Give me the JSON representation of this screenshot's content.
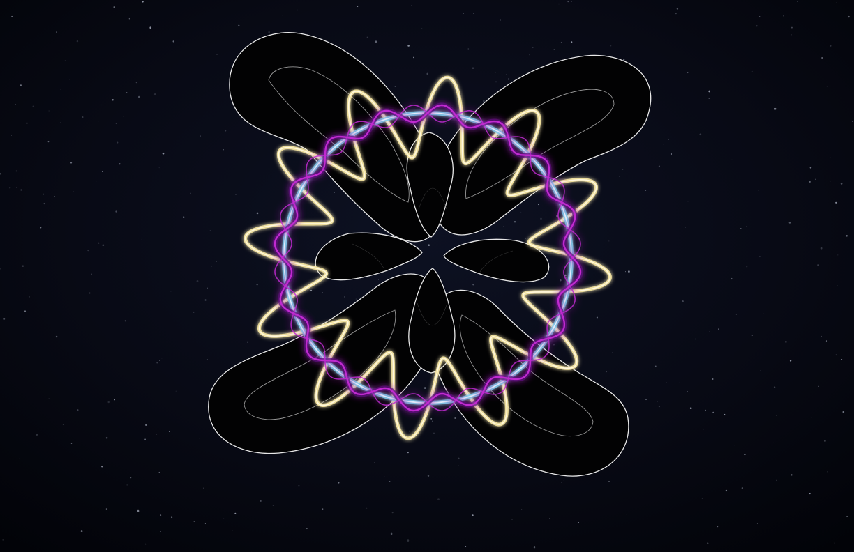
{
  "scene": {
    "background_top": "#0d1122",
    "background_mid": "#080a15",
    "background_edge": "#020308",
    "star_color": "#c8cfe0",
    "star_count": 420
  },
  "shapes": {
    "ribbon_fill": "#020203",
    "ribbon_outline": "#e8e8e8",
    "gold_curve": "#f7e7a1",
    "gold_curve_core": "#fff8de",
    "cyan_ring": "#7fd3ee",
    "cyan_ring_core": "#e6f9ff",
    "magenta_helix": "#c02ad0",
    "magenta_glow": "#5a0d7a"
  }
}
